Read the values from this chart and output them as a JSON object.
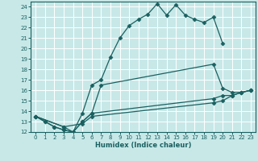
{
  "xlabel": "Humidex (Indice chaleur)",
  "bg_color": "#c8e8e8",
  "grid_color": "#b0d0d0",
  "line_color": "#1a6060",
  "xlim": [
    -0.5,
    23.5
  ],
  "ylim": [
    12,
    24.5
  ],
  "xticks": [
    0,
    1,
    2,
    3,
    4,
    5,
    6,
    7,
    8,
    9,
    10,
    11,
    12,
    13,
    14,
    15,
    16,
    17,
    18,
    19,
    20,
    21,
    22,
    23
  ],
  "yticks": [
    12,
    13,
    14,
    15,
    16,
    17,
    18,
    19,
    20,
    21,
    22,
    23,
    24
  ],
  "line1_x": [
    0,
    1,
    2,
    3,
    4,
    5,
    6,
    7,
    8,
    9,
    10,
    11,
    12,
    13,
    14,
    15,
    16,
    17,
    18,
    19,
    20
  ],
  "line1_y": [
    13.5,
    13.0,
    12.5,
    12.2,
    12.0,
    13.8,
    16.5,
    17.0,
    19.2,
    21.0,
    22.2,
    22.8,
    23.3,
    24.3,
    23.2,
    24.2,
    23.2,
    22.8,
    22.5,
    23.0,
    20.5
  ],
  "line2_x": [
    0,
    1,
    2,
    3,
    4,
    5,
    6,
    7,
    19,
    20,
    21,
    22,
    23
  ],
  "line2_y": [
    13.5,
    13.0,
    12.5,
    12.2,
    12.0,
    13.0,
    13.8,
    16.5,
    18.5,
    16.2,
    15.8,
    15.8,
    16.0
  ],
  "line3_x": [
    0,
    3,
    4,
    5,
    6,
    19,
    20,
    21,
    22,
    23
  ],
  "line3_y": [
    13.5,
    12.5,
    12.0,
    13.0,
    13.8,
    15.2,
    15.5,
    15.5,
    15.8,
    16.0
  ],
  "line4_x": [
    0,
    3,
    5,
    6,
    19,
    20,
    21,
    22,
    23
  ],
  "line4_y": [
    13.5,
    12.5,
    12.8,
    13.5,
    14.8,
    15.0,
    15.5,
    15.8,
    16.0
  ]
}
